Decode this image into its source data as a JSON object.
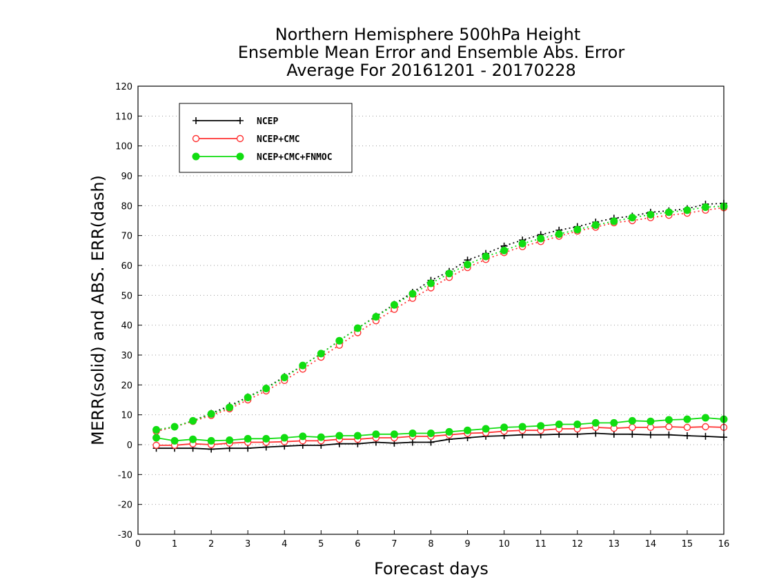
{
  "chart_data": {
    "type": "line",
    "title_lines": [
      "Northern Hemisphere 500hPa Height",
      "Ensemble Mean Error and Ensemble Abs. Error",
      "Average For 20161201 - 20170228"
    ],
    "xlabel": "Forecast days",
    "ylabel": "MERR(solid) and ABS. ERR(dash)",
    "xlim": [
      0,
      16
    ],
    "ylim": [
      -30,
      120
    ],
    "xticks": [
      0,
      1,
      2,
      3,
      4,
      5,
      6,
      7,
      8,
      9,
      10,
      11,
      12,
      13,
      14,
      15,
      16
    ],
    "yticks": [
      -30,
      -20,
      -10,
      0,
      10,
      20,
      30,
      40,
      50,
      60,
      70,
      80,
      90,
      100,
      110,
      120
    ],
    "grid": "horizontal dotted",
    "legend_position": "top-left",
    "x": [
      0.5,
      1.0,
      1.5,
      2.0,
      2.5,
      3.0,
      3.5,
      4.0,
      4.5,
      5.0,
      5.5,
      6.0,
      6.5,
      7.0,
      7.5,
      8.0,
      8.5,
      9.0,
      9.5,
      10.0,
      10.5,
      11.0,
      11.5,
      12.0,
      12.5,
      13.0,
      13.5,
      14.0,
      14.5,
      15.0,
      15.5,
      16.0
    ],
    "series": [
      {
        "name": "NCEP",
        "color": "#000000",
        "marker": "plus",
        "merr": [
          -1.2,
          -1.2,
          -1.2,
          -1.5,
          -1.2,
          -1.2,
          -0.8,
          -0.5,
          -0.2,
          -0.2,
          0.3,
          0.3,
          0.8,
          0.5,
          0.8,
          0.8,
          1.8,
          2.3,
          2.8,
          3.0,
          3.3,
          3.3,
          3.5,
          3.5,
          3.8,
          3.5,
          3.5,
          3.3,
          3.3,
          3.0,
          2.8,
          2.5
        ],
        "abs_err": [
          4.5,
          6.0,
          8.0,
          10.5,
          13.0,
          16.0,
          19.0,
          22.8,
          26.5,
          30.5,
          34.8,
          39.0,
          43.0,
          47.0,
          51.0,
          55.0,
          58.0,
          61.8,
          64.0,
          66.5,
          68.5,
          70.3,
          71.8,
          73.0,
          74.5,
          75.8,
          76.5,
          77.8,
          78.3,
          79.0,
          80.5,
          80.8
        ]
      },
      {
        "name": "NCEP+CMC",
        "color": "#ff3030",
        "marker": "open-circle",
        "merr": [
          -0.2,
          -0.2,
          0.3,
          0.0,
          0.5,
          0.8,
          0.8,
          1.0,
          1.3,
          1.3,
          1.8,
          1.8,
          2.3,
          2.3,
          2.8,
          2.8,
          3.3,
          3.8,
          4.0,
          4.5,
          4.8,
          4.8,
          5.3,
          5.3,
          5.8,
          5.5,
          5.8,
          5.8,
          6.0,
          5.8,
          6.0,
          5.8
        ],
        "abs_err": [
          4.5,
          6.0,
          7.8,
          9.8,
          12.0,
          15.0,
          18.0,
          21.5,
          25.3,
          29.3,
          33.3,
          37.5,
          41.5,
          45.3,
          49.0,
          52.5,
          56.0,
          59.3,
          62.0,
          64.3,
          66.3,
          68.0,
          69.8,
          71.5,
          72.8,
          74.3,
          75.0,
          76.0,
          76.8,
          77.5,
          78.5,
          79.3
        ]
      },
      {
        "name": "NCEP+CMC+FNMOC",
        "color": "#11dd11",
        "marker": "filled-circle",
        "merr": [
          2.3,
          1.3,
          1.8,
          1.3,
          1.5,
          2.0,
          2.0,
          2.3,
          2.8,
          2.5,
          3.0,
          3.0,
          3.5,
          3.5,
          3.8,
          3.8,
          4.3,
          4.8,
          5.3,
          5.8,
          6.0,
          6.3,
          6.8,
          6.8,
          7.3,
          7.3,
          8.0,
          7.8,
          8.3,
          8.5,
          9.0,
          8.5
        ],
        "abs_err": [
          5.0,
          6.0,
          8.0,
          10.3,
          12.5,
          15.8,
          18.8,
          22.5,
          26.5,
          30.5,
          34.8,
          39.0,
          42.8,
          46.8,
          50.5,
          54.0,
          57.3,
          60.3,
          63.0,
          65.0,
          67.3,
          69.0,
          70.5,
          72.0,
          73.5,
          74.8,
          76.0,
          77.0,
          77.8,
          78.5,
          79.5,
          79.8
        ]
      }
    ]
  }
}
